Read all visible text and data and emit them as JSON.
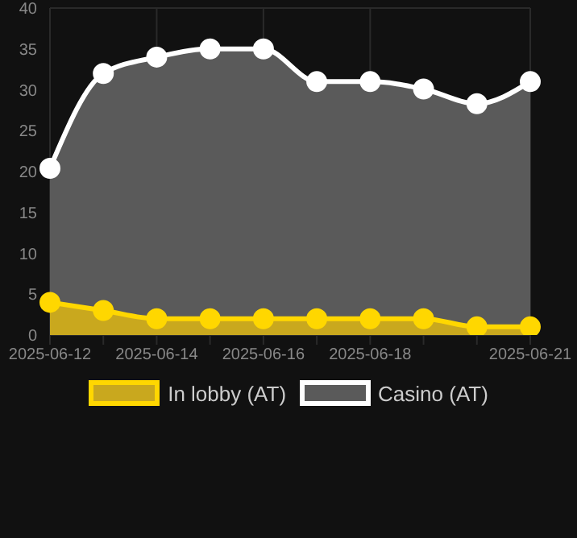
{
  "chart_data": {
    "type": "area",
    "categories": [
      "2025-06-12",
      null,
      "2025-06-14",
      null,
      "2025-06-16",
      null,
      "2025-06-18",
      null,
      null,
      "2025-06-21"
    ],
    "series": [
      {
        "name": "In lobby (AT)",
        "color": "#ffd700",
        "values": [
          4,
          3,
          2,
          2,
          2,
          2,
          2,
          2,
          1,
          1
        ]
      },
      {
        "name": "Casino (AT)",
        "color": "#ffffff",
        "values": [
          20.4,
          32,
          34,
          35,
          35,
          31,
          31,
          30.1,
          28.3,
          31
        ]
      }
    ],
    "ylim": [
      0,
      40
    ],
    "yticks": [
      0,
      5,
      10,
      15,
      20,
      25,
      30,
      35,
      40
    ],
    "grid": true,
    "legend": "bottom",
    "marker": "circle"
  }
}
